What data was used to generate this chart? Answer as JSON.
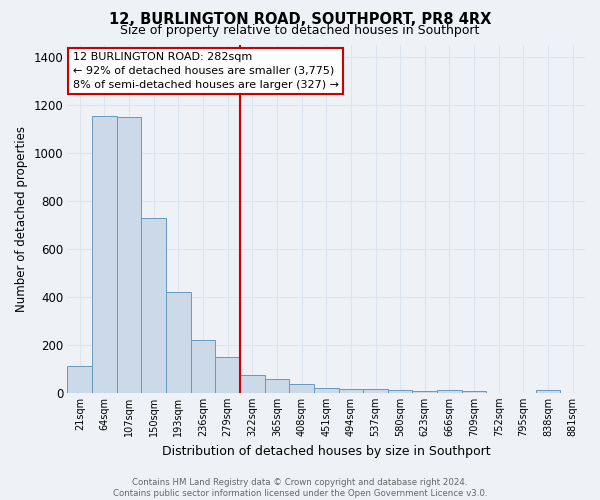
{
  "title": "12, BURLINGTON ROAD, SOUTHPORT, PR8 4RX",
  "subtitle": "Size of property relative to detached houses in Southport",
  "xlabel": "Distribution of detached houses by size in Southport",
  "ylabel": "Number of detached properties",
  "bar_labels": [
    "21sqm",
    "64sqm",
    "107sqm",
    "150sqm",
    "193sqm",
    "236sqm",
    "279sqm",
    "322sqm",
    "365sqm",
    "408sqm",
    "451sqm",
    "494sqm",
    "537sqm",
    "580sqm",
    "623sqm",
    "666sqm",
    "709sqm",
    "752sqm",
    "795sqm",
    "838sqm",
    "881sqm"
  ],
  "bar_values": [
    110,
    1155,
    1150,
    730,
    420,
    220,
    150,
    75,
    55,
    35,
    20,
    15,
    15,
    10,
    5,
    10,
    5,
    0,
    0,
    10,
    0
  ],
  "bar_color": "#ccd9e8",
  "bar_edge_color": "#6699bb",
  "vline_color": "#cc0000",
  "ylim": [
    0,
    1450
  ],
  "yticks": [
    0,
    200,
    400,
    600,
    800,
    1000,
    1200,
    1400
  ],
  "annotation_title": "12 BURLINGTON ROAD: 282sqm",
  "annotation_line1": "← 92% of detached houses are smaller (3,775)",
  "annotation_line2": "8% of semi-detached houses are larger (327) →",
  "annotation_box_color": "#ffffff",
  "annotation_box_edge": "#cc0000",
  "footer_line1": "Contains HM Land Registry data © Crown copyright and database right 2024.",
  "footer_line2": "Contains public sector information licensed under the Open Government Licence v3.0.",
  "background_color": "#eef2f7",
  "grid_color": "#dde6f0"
}
